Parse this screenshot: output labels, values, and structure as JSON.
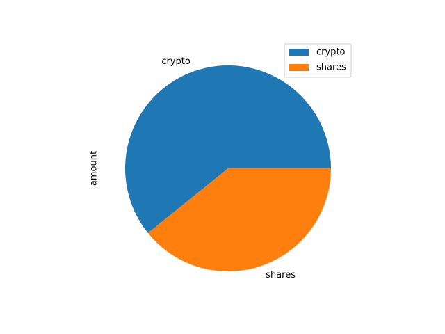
{
  "chart_data": {
    "type": "pie",
    "ylabel": "amount",
    "categories": [
      "crypto",
      "shares"
    ],
    "values": [
      60.8,
      39.2
    ],
    "colors": [
      "#1f77b4",
      "#ff7f0e"
    ],
    "start_angle_deg": 0,
    "direction": "counterclockwise",
    "legend": {
      "placement": "top-right",
      "entries": [
        "crypto",
        "shares"
      ]
    }
  }
}
